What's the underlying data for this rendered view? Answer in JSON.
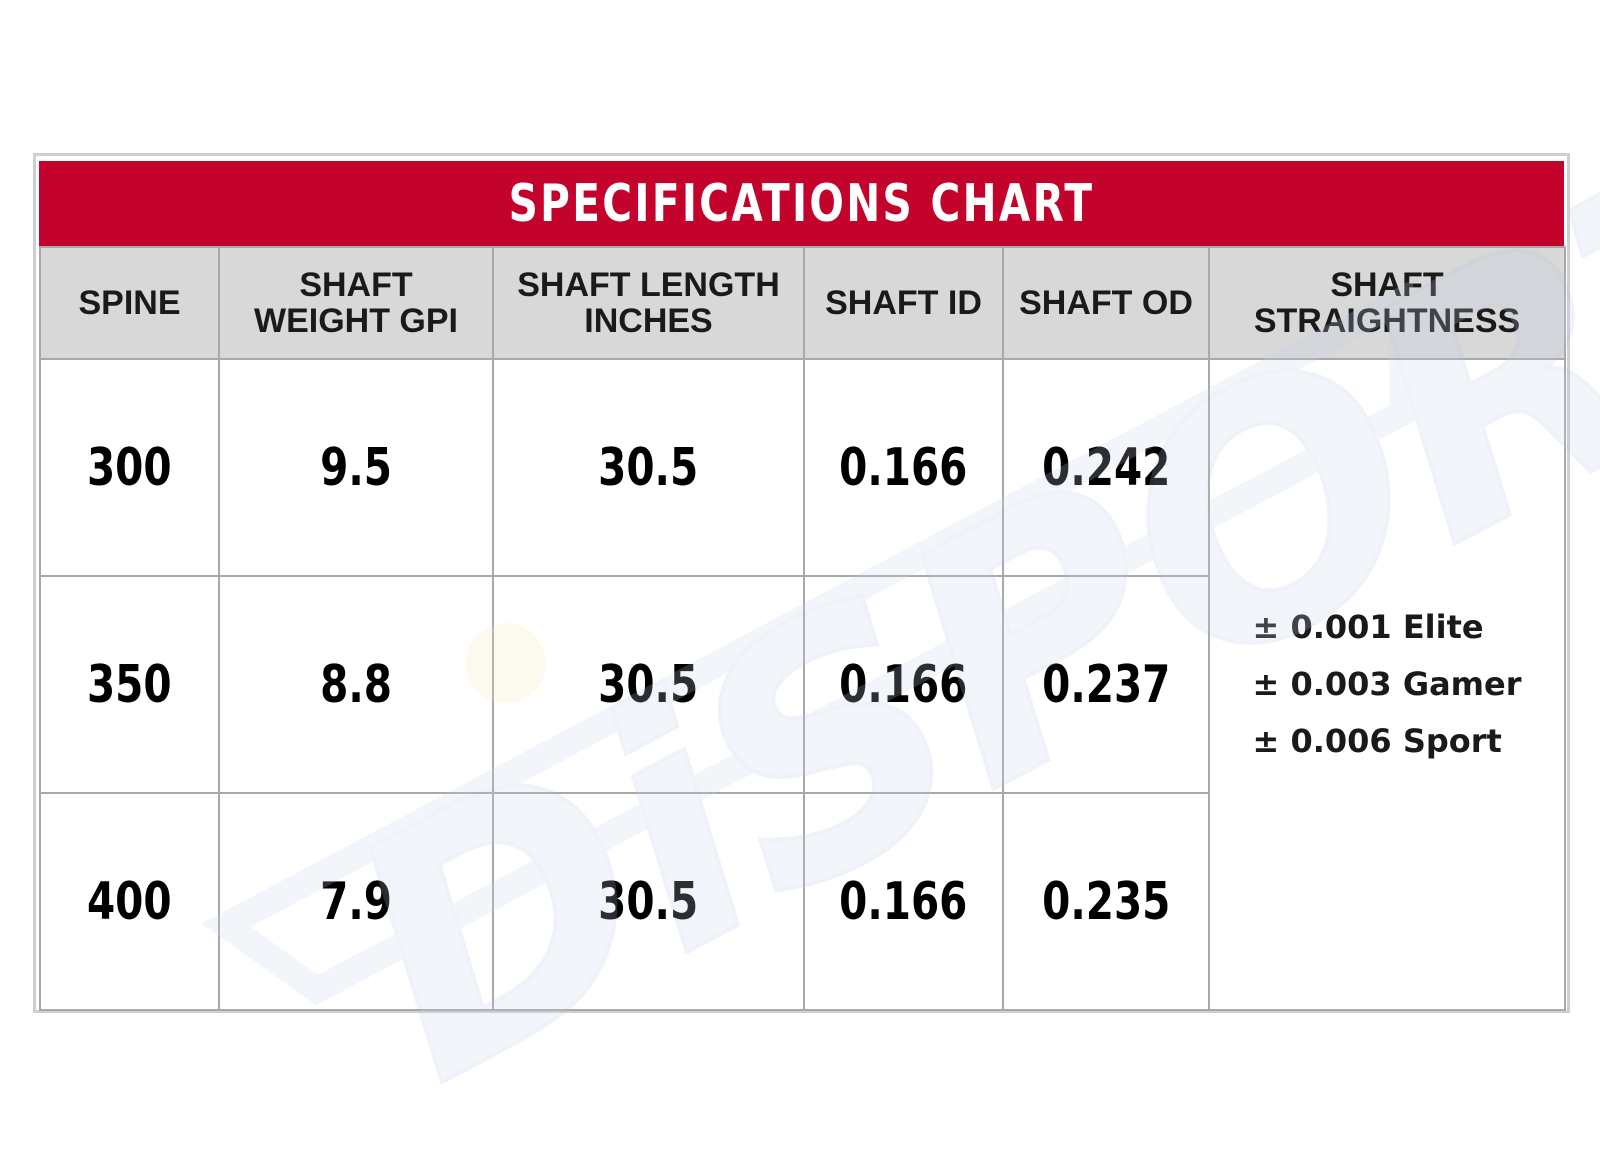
{
  "chart_title": "SPECIFICATIONS CHART",
  "headers": {
    "spine": "SPINE",
    "shaft_weight_gpi": [
      "SHAFT",
      "WEIGHT GPI"
    ],
    "shaft_length_inches": [
      "SHAFT LENGTH",
      "INCHES"
    ],
    "shaft_id": "SHAFT ID",
    "shaft_od": "SHAFT OD",
    "shaft_straightness": [
      "SHAFT",
      "STRAIGHTNESS"
    ]
  },
  "rows": [
    {
      "spine": "300",
      "weight": "9.5",
      "length": "30.5",
      "id": "0.166",
      "od": "0.242"
    },
    {
      "spine": "350",
      "weight": "8.8",
      "length": "30.5",
      "id": "0.166",
      "od": "0.237"
    },
    {
      "spine": "400",
      "weight": "7.9",
      "length": "30.5",
      "id": "0.166",
      "od": "0.235"
    }
  ],
  "straightness": [
    "± 0.001 Elite",
    "± 0.003 Gamer",
    "± 0.006 Sport"
  ],
  "watermark_text": "DiSPORT",
  "colors": {
    "title_bar": "#c4032c",
    "header_bg": "#d8d8d8",
    "grid_lines": "#a8a8a8",
    "watermark_blue": "#c6d3e6",
    "watermark_yellow": "#f4e9b5"
  }
}
